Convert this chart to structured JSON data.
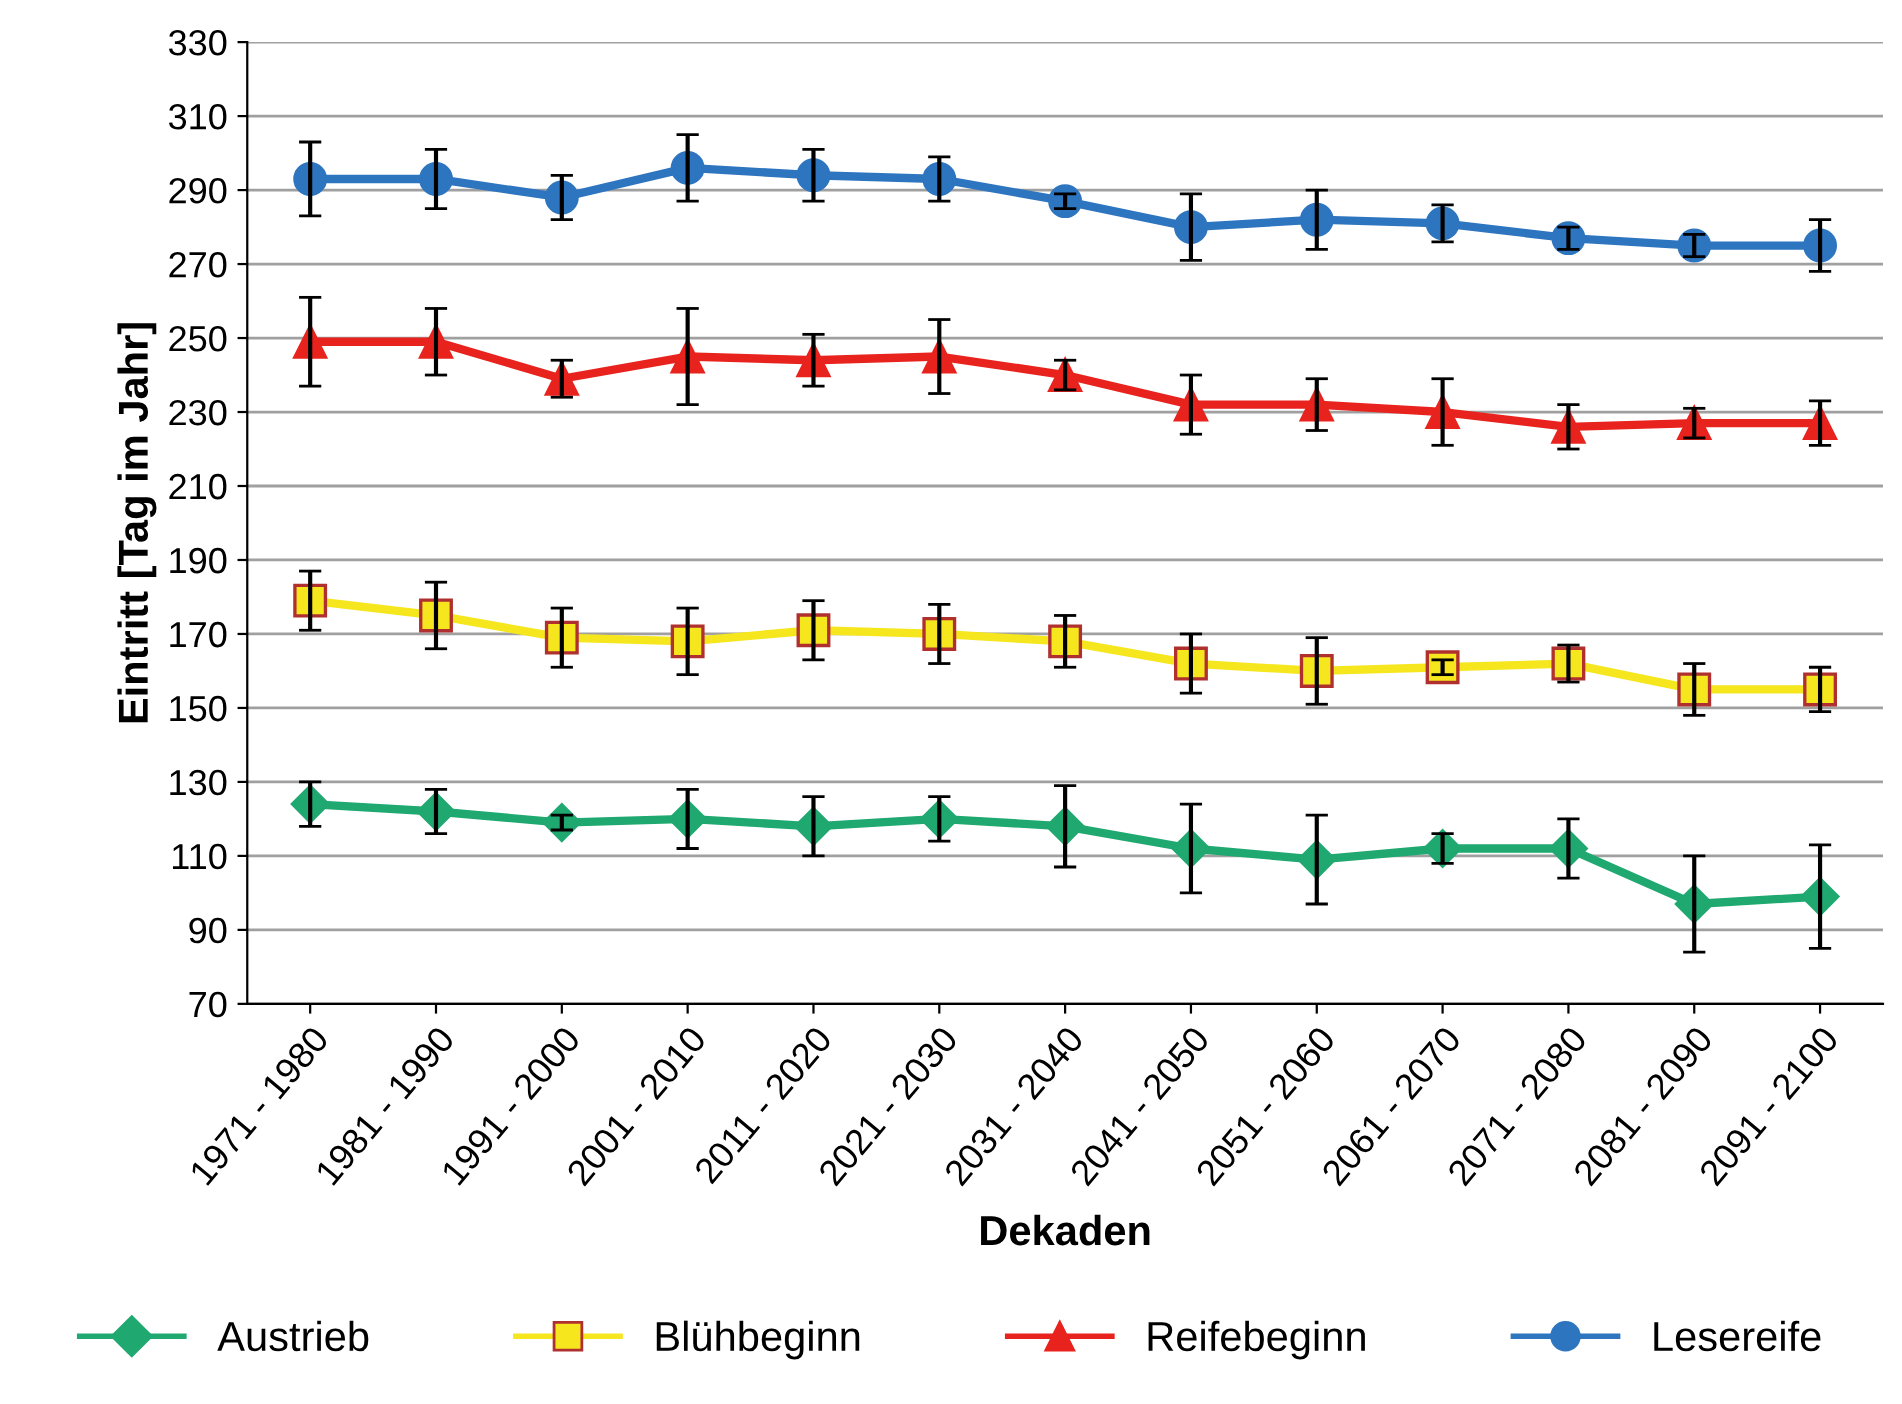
{
  "chart_data": {
    "type": "line",
    "xlabel": "Dekaden",
    "ylabel": "Eintritt [Tag im Jahr]",
    "categories": [
      "1971 - 1980",
      "1981 - 1990",
      "1991 - 2000",
      "2001 - 2010",
      "2011 - 2020",
      "2021 - 2030",
      "2031 - 2040",
      "2041 - 2050",
      "2051 - 2060",
      "2061 - 2070",
      "2071 - 2080",
      "2081 - 2090",
      "2091 - 2100"
    ],
    "series": [
      {
        "name": "Austrieb",
        "color": "#1fa870",
        "marker": "diamond",
        "values": [
          124,
          122,
          119,
          120,
          118,
          120,
          118,
          112,
          109,
          112,
          112,
          97,
          99
        ],
        "errors": [
          6,
          6,
          2,
          8,
          8,
          6,
          11,
          12,
          12,
          4,
          8,
          13,
          14
        ]
      },
      {
        "name": "Blühbeginn",
        "color": "#f5e61e",
        "marker": "square",
        "values": [
          179,
          175,
          169,
          168,
          171,
          170,
          168,
          162,
          160,
          161,
          162,
          155,
          155
        ],
        "errors": [
          8,
          9,
          8,
          9,
          8,
          8,
          7,
          8,
          9,
          2,
          5,
          7,
          6
        ]
      },
      {
        "name": "Reifebeginn",
        "color": "#e8231e",
        "marker": "triangle",
        "values": [
          249,
          249,
          239,
          245,
          244,
          245,
          240,
          232,
          232,
          230,
          226,
          227,
          227
        ],
        "errors": [
          12,
          9,
          5,
          13,
          7,
          10,
          4,
          8,
          7,
          9,
          6,
          4,
          6
        ]
      },
      {
        "name": "Lesereife",
        "color": "#2e75c0",
        "marker": "circle",
        "values": [
          293,
          293,
          288,
          296,
          294,
          293,
          287,
          280,
          282,
          281,
          277,
          275,
          275
        ],
        "errors": [
          10,
          8,
          6,
          9,
          7,
          6,
          2,
          9,
          8,
          5,
          3,
          3,
          7
        ]
      }
    ],
    "ylim": [
      70,
      330
    ],
    "yticks": [
      70,
      90,
      110,
      130,
      150,
      170,
      190,
      210,
      230,
      250,
      270,
      290,
      310,
      330
    ],
    "grid": "y",
    "legend": "bottom"
  }
}
